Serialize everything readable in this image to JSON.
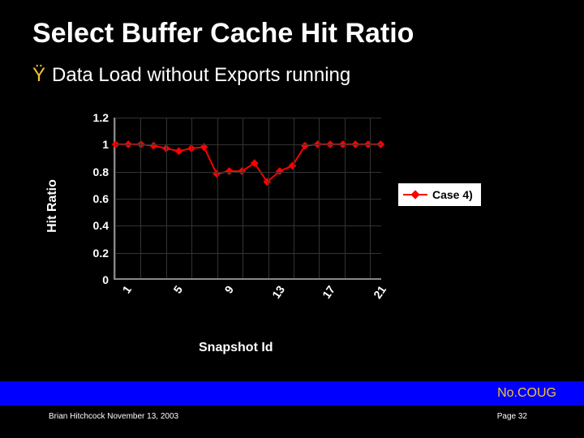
{
  "title": "Select Buffer Cache Hit Ratio",
  "bullet_glyph": "Ÿ",
  "subtitle": "Data Load without Exports running",
  "chart": {
    "type": "line",
    "ylabel": "Hit Ratio",
    "xlabel": "Snapshot Id",
    "ylim": [
      0,
      1.2
    ],
    "yticks": [
      0,
      0.2,
      0.4,
      0.6,
      0.8,
      1,
      1.2
    ],
    "xticks": [
      1,
      5,
      9,
      13,
      17,
      21
    ],
    "x_count": 22,
    "series": {
      "label": "Case 4)",
      "color": "#ff0000",
      "marker": "diamond",
      "line_width": 2,
      "marker_size": 7,
      "values": [
        1.0,
        1.0,
        1.0,
        0.99,
        0.97,
        0.95,
        0.97,
        0.98,
        0.78,
        0.8,
        0.8,
        0.86,
        0.72,
        0.8,
        0.84,
        0.99,
        1.0,
        1.0,
        1.0,
        1.0,
        1.0,
        1.0
      ]
    },
    "background_color": "#000000",
    "grid_color": "#333333",
    "axis_color": "#888888",
    "text_color": "#ffffff"
  },
  "bar_text": "No.COUG",
  "footer_left": "Brian Hitchcock  November 13, 2003",
  "footer_right": "Page 32",
  "colors": {
    "slide_bg": "#000000",
    "bullet": "#f4c430",
    "bar_bg": "#0000ff",
    "bar_fg": "#f4c430"
  }
}
